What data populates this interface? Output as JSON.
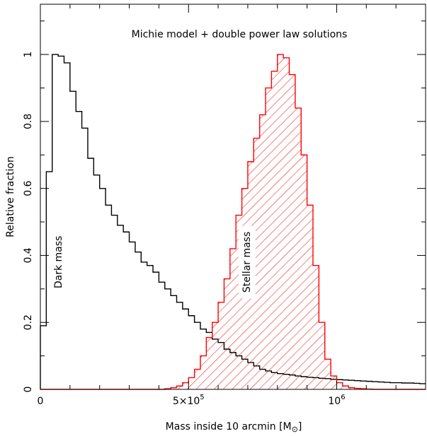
{
  "chart_data": {
    "type": "histogram",
    "title": "Michie model + double power law solutions",
    "xlabel": "Mass inside 10 arcmin [M",
    "xlabel_symbol": "⊙",
    "xlabel_close": "]",
    "ylabel": "Relative fraction",
    "xlim": [
      0,
      1300000
    ],
    "ylim": [
      0,
      1.15
    ],
    "grid": false,
    "x_ticks": [
      {
        "value": 0,
        "label": "0"
      },
      {
        "value": 500000,
        "label": "5×10",
        "sup": "5"
      },
      {
        "value": 1000000,
        "label": "10",
        "sup": "6"
      }
    ],
    "y_ticks": [
      {
        "value": 0,
        "label": "0"
      },
      {
        "value": 0.2,
        "label": "0.2"
      },
      {
        "value": 0.4,
        "label": "0.4"
      },
      {
        "value": 0.6,
        "label": "0.6"
      },
      {
        "value": 0.8,
        "label": "0.8"
      },
      {
        "value": 1.0,
        "label": "1"
      }
    ],
    "bin_width": 20000,
    "series": [
      {
        "name": "Dark mass",
        "color": "#000000",
        "hatched": false,
        "x_start": 0,
        "values": [
          0.19,
          0.65,
          1.0,
          0.995,
          0.975,
          0.89,
          0.83,
          0.78,
          0.69,
          0.64,
          0.6,
          0.55,
          0.52,
          0.49,
          0.47,
          0.44,
          0.41,
          0.38,
          0.37,
          0.35,
          0.32,
          0.3,
          0.28,
          0.26,
          0.24,
          0.22,
          0.2,
          0.18,
          0.17,
          0.15,
          0.14,
          0.12,
          0.11,
          0.1,
          0.09,
          0.08,
          0.07,
          0.06,
          0.055,
          0.05,
          0.047,
          0.045,
          0.043,
          0.04,
          0.038,
          0.036,
          0.035,
          0.033,
          0.032,
          0.03,
          0.029,
          0.028,
          0.027,
          0.026,
          0.025,
          0.024,
          0.023,
          0.022,
          0.021,
          0.02,
          0.02,
          0.019,
          0.019,
          0.018,
          0.017
        ]
      },
      {
        "name": "Stellar mass",
        "color": "#ff0000",
        "hatched": true,
        "x_start": 0,
        "values": [
          0,
          0,
          0,
          0,
          0,
          0,
          0,
          0,
          0,
          0,
          0,
          0,
          0,
          0,
          0,
          0,
          0,
          0,
          0,
          0,
          0,
          0.002,
          0.005,
          0.01,
          0.02,
          0.035,
          0.06,
          0.1,
          0.155,
          0.2,
          0.26,
          0.33,
          0.42,
          0.52,
          0.6,
          0.68,
          0.75,
          0.82,
          0.9,
          0.95,
          1.0,
          0.99,
          0.94,
          0.84,
          0.7,
          0.55,
          0.37,
          0.2,
          0.09,
          0.04,
          0.02,
          0.01,
          0.005,
          0.003,
          0.002,
          0.001,
          0,
          0,
          0,
          0,
          0,
          0,
          0,
          0,
          0
        ]
      }
    ],
    "annotations": [
      {
        "text": "Dark mass",
        "x": 60000,
        "y": 0.38,
        "rotation": -90
      },
      {
        "text": "Stellar mass",
        "x": 695000,
        "y": 0.38,
        "rotation": -90,
        "background": "#ffffff"
      }
    ]
  }
}
